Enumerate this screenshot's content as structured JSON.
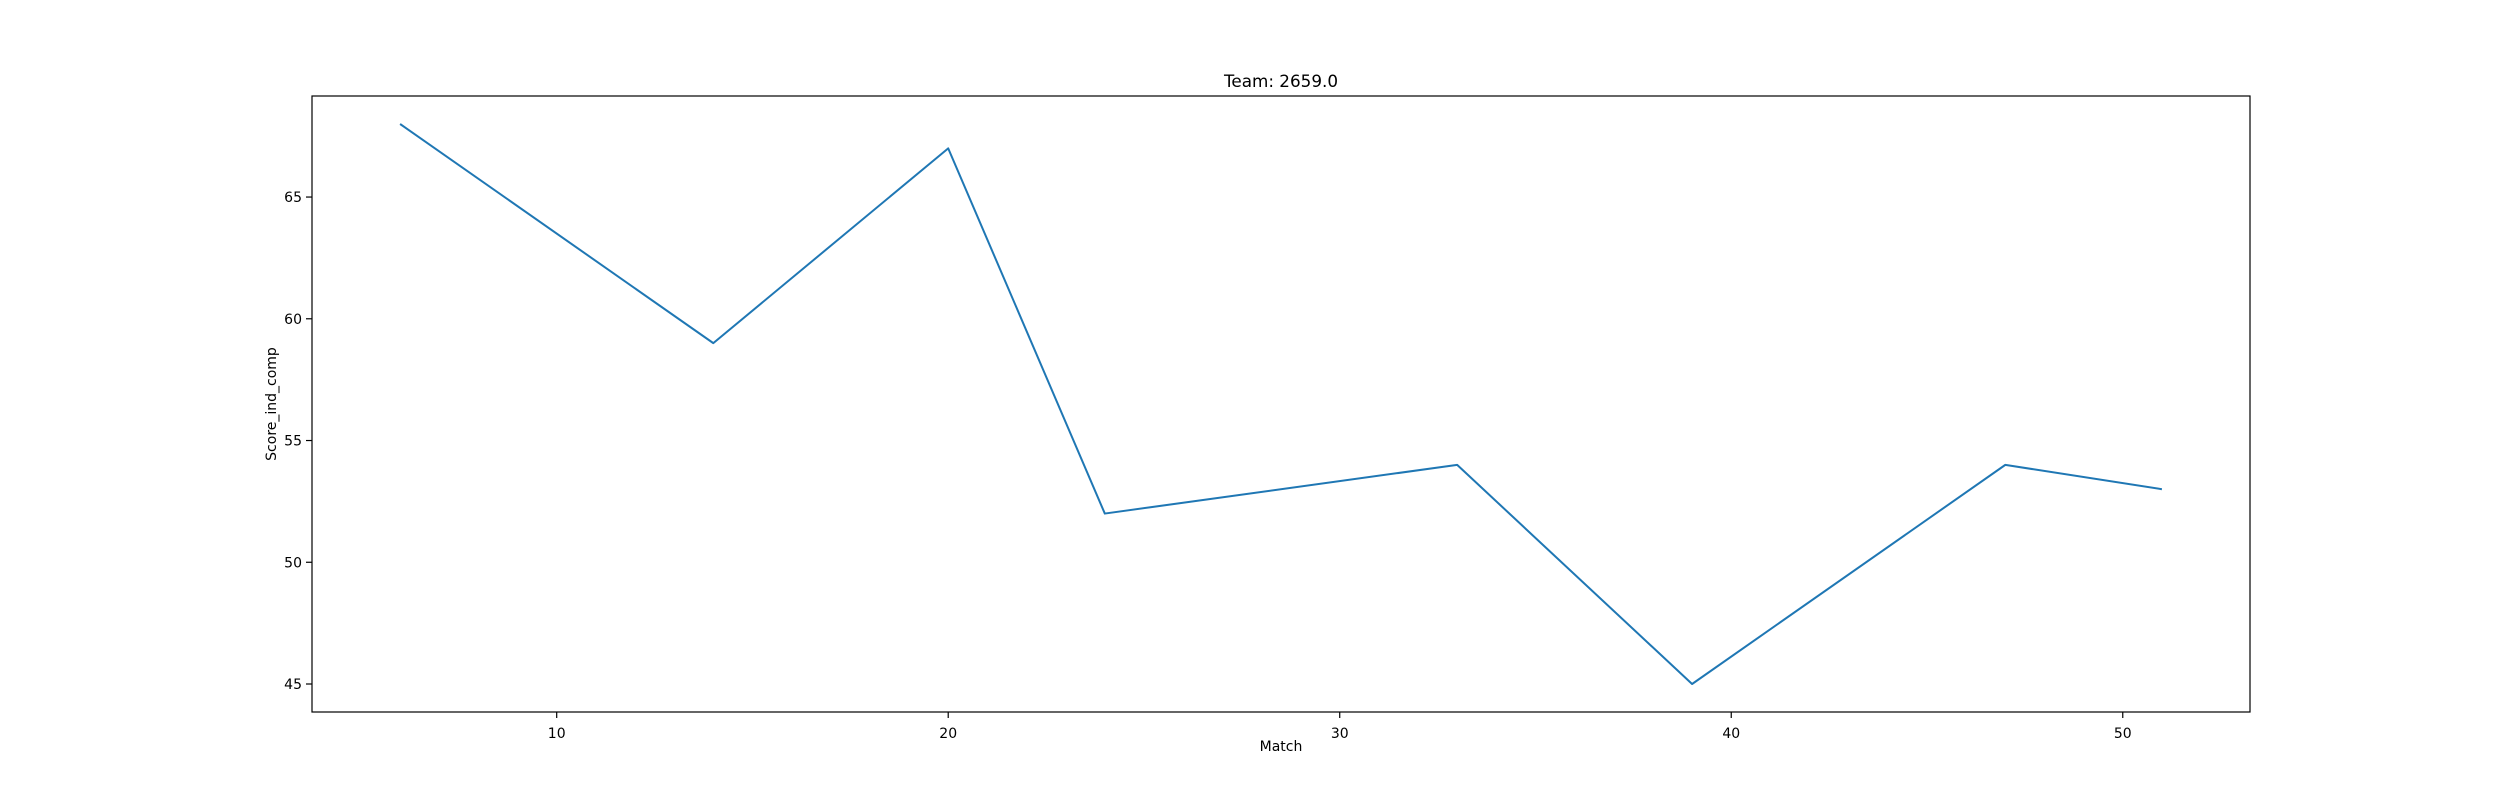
{
  "chart_data": {
    "type": "line",
    "title": "Team: 2659.0",
    "xlabel": "Match",
    "ylabel": "Score_ind_comp",
    "x": [
      6,
      14,
      20,
      24,
      33,
      39,
      47,
      51
    ],
    "series": [
      {
        "values": [
          68,
          59,
          67,
          52,
          54,
          45,
          54,
          53
        ],
        "color": "#1f77b4"
      }
    ],
    "xlim": [
      3.75,
      53.25
    ],
    "ylim": [
      43.85,
      69.15
    ],
    "xticks": [
      10,
      20,
      30,
      40,
      50
    ],
    "yticks": [
      45,
      50,
      55,
      60,
      65
    ],
    "grid": false,
    "legend": "none"
  }
}
